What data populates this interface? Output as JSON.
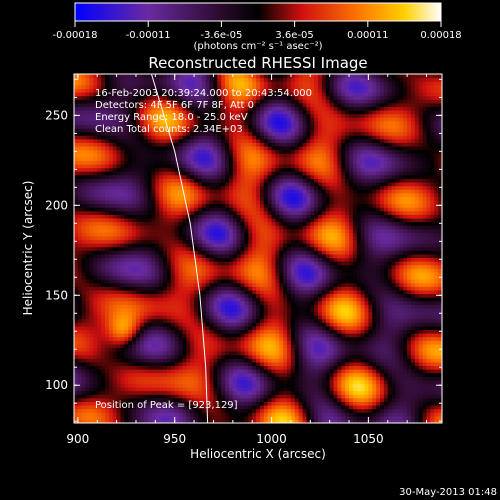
{
  "chart_data": {
    "type": "heatmap",
    "title": "Reconstructed RHESSI Image",
    "xlabel": "Heliocentric X (arcsec)",
    "ylabel": "Heliocentric Y (arcsec)",
    "xlim": [
      898,
      1088
    ],
    "ylim": [
      79,
      273
    ],
    "xticks": [
      900,
      950,
      1000,
      1050
    ],
    "yticks": [
      100,
      150,
      200,
      250
    ],
    "colorbar": {
      "ticks": [
        "-0.00018",
        "-0.00011",
        "-3.6e-05",
        "3.6e-05",
        "0.00011",
        "0.00018"
      ],
      "unit_label": "(photons cm⁻² s⁻¹ asec⁻²)",
      "min": -0.00018,
      "max": 0.00018
    },
    "annotations": [
      "16-Feb-2003 20:39:24.000 to 20:43:54.000",
      "Detectors: 4F 5F 6F 7F 8F, Att 0",
      "Energy Range: 18.0 - 25.0 keV",
      "Clean     Total counts: 2.34E+03"
    ],
    "peak_label": "Position of Peak = [923,129]",
    "peak": [
      923,
      129
    ],
    "limb_curve": [
      [
        938,
        273
      ],
      [
        950,
        230
      ],
      [
        958,
        190
      ],
      [
        963,
        150
      ],
      [
        966,
        110
      ],
      [
        967,
        79
      ]
    ],
    "grid": false,
    "legend": "none"
  },
  "footer": {
    "date": "30-May-2013 01:48"
  }
}
